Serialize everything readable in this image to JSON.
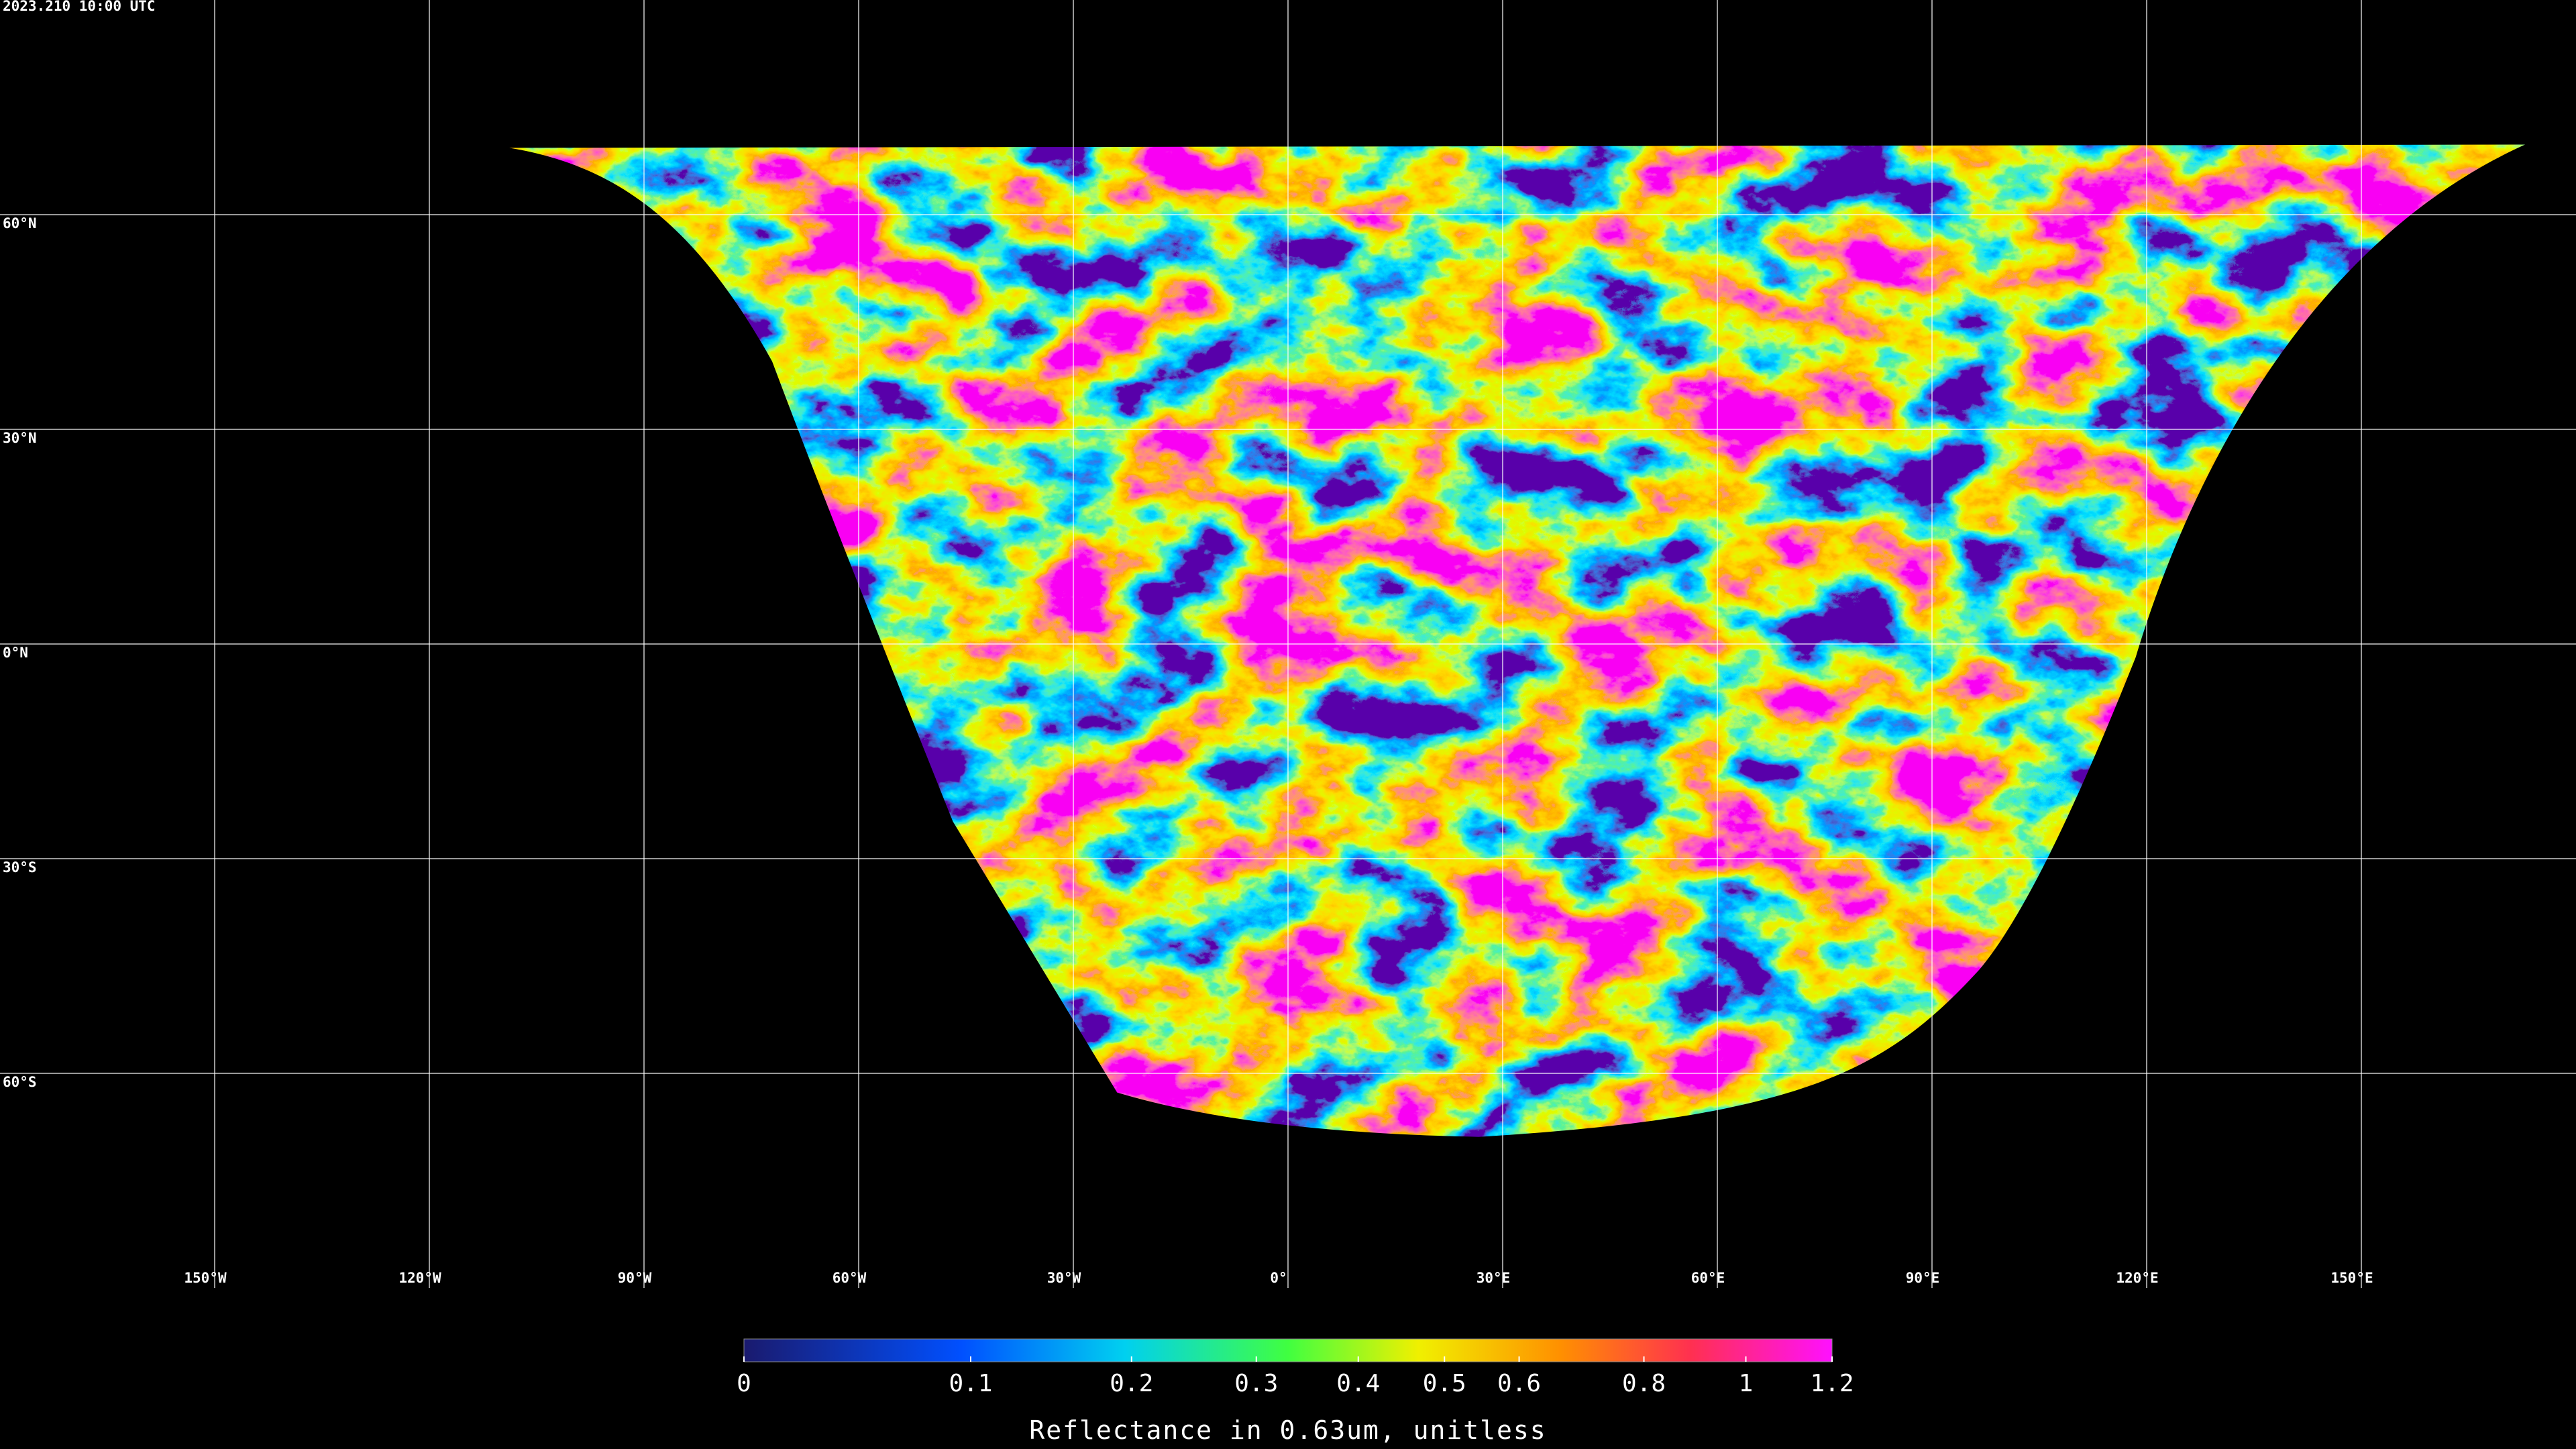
{
  "header": {
    "timestamp": "2023.210 10:00 UTC"
  },
  "map": {
    "lat_labels": [
      "60°N",
      "30°N",
      "0°N",
      "30°S",
      "60°S"
    ],
    "lon_labels": [
      "150°W",
      "120°W",
      "90°W",
      "60°W",
      "30°W",
      "0°",
      "30°E",
      "60°E",
      "90°E",
      "120°E",
      "150°E"
    ]
  },
  "colorbar": {
    "lim": [
      0,
      1.2
    ],
    "ticks": [
      0,
      0.1,
      0.2,
      0.3,
      0.4,
      0.5,
      0.6,
      0.8,
      1,
      1.2
    ],
    "label": "Reflectance in 0.63um, unitless"
  }
}
